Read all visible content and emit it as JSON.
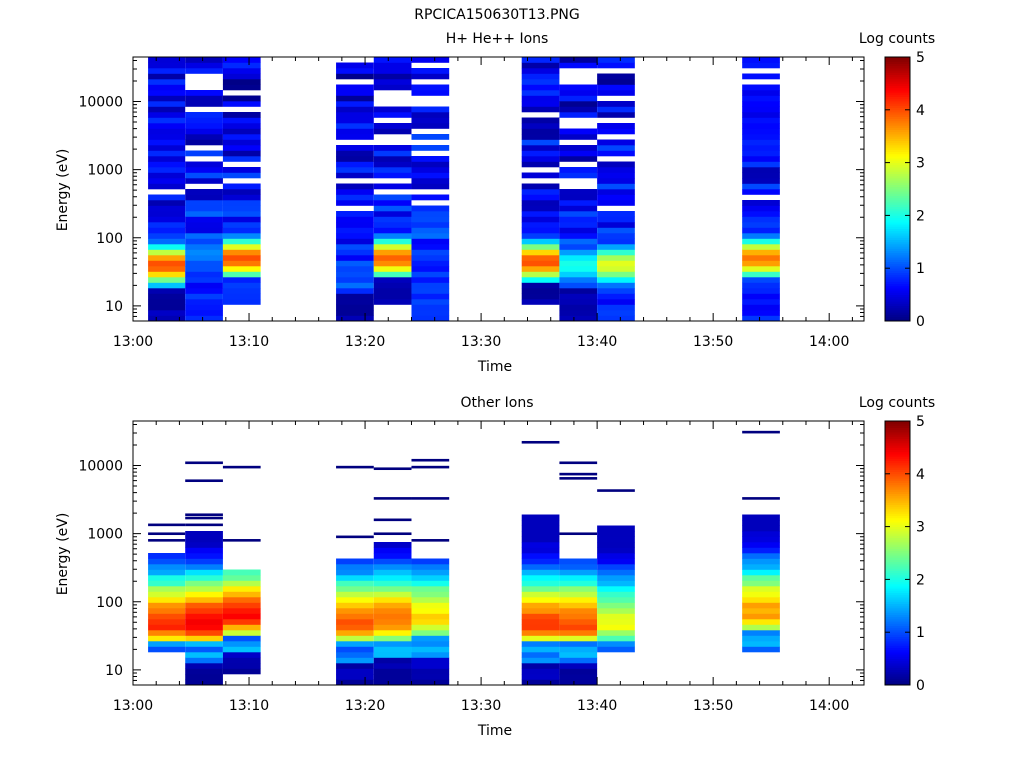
{
  "figure_title": "RPCICA150630T13.PNG",
  "colors": {
    "colormap": [
      "#00007f",
      "#0000ff",
      "#007fff",
      "#00ffff",
      "#7fff7f",
      "#ffff00",
      "#ff7f00",
      "#ff0000",
      "#7f0000"
    ]
  },
  "chart_data": [
    {
      "type": "heatmap",
      "title": "H+ He++ Ions",
      "xlabel": "Time",
      "ylabel": "Energy (eV)",
      "xticks": [
        "13:00",
        "13:10",
        "13:20",
        "13:30",
        "13:40",
        "13:50",
        "14:00"
      ],
      "xlim": [
        "13:00",
        "14:03"
      ],
      "yscale": "log",
      "ylim": [
        6,
        45000
      ],
      "yticks": [
        "10",
        "100",
        "1000",
        "10000"
      ],
      "colorbar": {
        "label": "Log counts",
        "range": [
          0,
          5
        ],
        "ticks": [
          "0",
          "1",
          "2",
          "3",
          "4",
          "5"
        ]
      },
      "time_bins": [
        {
          "start": "13:01:18",
          "end": "13:04:30",
          "emax": 40000,
          "emin": 6,
          "peak_energy": 40,
          "peak_log_counts": 4.0,
          "lowE_fill": "dark"
        },
        {
          "start": "13:04:30",
          "end": "13:07:45",
          "emax": 45000,
          "emin": 6,
          "peak_energy": 60,
          "peak_log_counts": 1.3,
          "lowE_fill": "blue"
        },
        {
          "start": "13:07:45",
          "end": "13:11:00",
          "emax": 45000,
          "emin": 10,
          "peak_energy": 50,
          "peak_log_counts": 4.0,
          "lowE_fill": "blue"
        },
        {
          "start": "13:17:30",
          "end": "13:20:45",
          "emax": 45000,
          "emin": 6,
          "peak_energy": 30,
          "peak_log_counts": 1.0,
          "lowE_fill": "dark"
        },
        {
          "start": "13:20:45",
          "end": "13:24:00",
          "emax": 45000,
          "emin": 10,
          "peak_energy": 50,
          "peak_log_counts": 3.9,
          "lowE_fill": "dark"
        },
        {
          "start": "13:24:00",
          "end": "13:27:15",
          "emax": 45000,
          "emin": 6,
          "peak_energy": 200,
          "peak_log_counts": 1.0,
          "lowE_fill": "blue"
        },
        {
          "start": "13:33:30",
          "end": "13:36:45",
          "emax": 40000,
          "emin": 10,
          "peak_energy": 45,
          "peak_log_counts": 4.0,
          "lowE_fill": "dark"
        },
        {
          "start": "13:36:45",
          "end": "13:40:00",
          "emax": 45000,
          "emin": 6,
          "peak_energy": 40,
          "peak_log_counts": 2.0,
          "lowE_fill": "dark"
        },
        {
          "start": "13:40:00",
          "end": "13:43:15",
          "emax": 45000,
          "emin": 6,
          "peak_energy": 40,
          "peak_log_counts": 3.0,
          "lowE_fill": "blue"
        },
        {
          "start": "13:52:30",
          "end": "13:55:45",
          "emax": 45000,
          "emin": 6,
          "peak_energy": 50,
          "peak_log_counts": 3.8,
          "lowE_fill": "blue"
        }
      ]
    },
    {
      "type": "heatmap",
      "title": "Other Ions",
      "xlabel": "Time",
      "ylabel": "Energy (eV)",
      "xticks": [
        "13:00",
        "13:10",
        "13:20",
        "13:30",
        "13:40",
        "13:50",
        "14:00"
      ],
      "xlim": [
        "13:00",
        "14:03"
      ],
      "yscale": "log",
      "ylim": [
        6,
        45000
      ],
      "yticks": [
        "10",
        "100",
        "1000",
        "10000"
      ],
      "colorbar": {
        "label": "Log counts",
        "range": [
          0,
          5
        ],
        "ticks": [
          "0",
          "1",
          "2",
          "3",
          "4",
          "5"
        ]
      },
      "time_bins": [
        {
          "start": "13:01:18",
          "end": "13:04:30",
          "emin": 20,
          "bulk_top": 550,
          "peak_energy": 45,
          "peak_log_counts": 4.2,
          "lines": [
            1350,
            1000,
            800
          ]
        },
        {
          "start": "13:04:30",
          "end": "13:07:45",
          "emin": 6,
          "bulk_top": 1000,
          "peak_energy": 45,
          "peak_log_counts": 4.5,
          "lines": [
            11000,
            6000,
            1900,
            1700,
            1350
          ]
        },
        {
          "start": "13:07:45",
          "end": "13:11:00",
          "emin": 9,
          "bulk_top": 320,
          "peak_energy": 60,
          "peak_log_counts": 4.3,
          "lines": [
            9500,
            800
          ]
        },
        {
          "start": "13:17:30",
          "end": "13:20:45",
          "emin": 6,
          "bulk_top": 430,
          "peak_energy": 45,
          "peak_log_counts": 3.9,
          "lines": [
            9500,
            900
          ]
        },
        {
          "start": "13:20:45",
          "end": "13:24:00",
          "emin": 6,
          "bulk_top": 700,
          "peak_energy": 50,
          "peak_log_counts": 3.8,
          "lines": [
            9000,
            3300,
            1600,
            1000
          ]
        },
        {
          "start": "13:24:00",
          "end": "13:27:15",
          "emin": 6,
          "bulk_top": 430,
          "peak_energy": 55,
          "peak_log_counts": 3.3,
          "lines": [
            12000,
            9500,
            3300,
            800
          ]
        },
        {
          "start": "13:33:30",
          "end": "13:36:45",
          "emin": 6,
          "bulk_top": 2000,
          "peak_energy": 45,
          "peak_log_counts": 4.0,
          "lines": [
            22000
          ]
        },
        {
          "start": "13:36:45",
          "end": "13:40:00",
          "emin": 6,
          "bulk_top": 420,
          "peak_energy": 45,
          "peak_log_counts": 4.0,
          "lines": [
            11000,
            7500,
            6500,
            1000
          ]
        },
        {
          "start": "13:40:00",
          "end": "13:43:15",
          "emin": 20,
          "bulk_top": 1250,
          "peak_energy": 45,
          "peak_log_counts": 3.0,
          "lines": [
            4300
          ]
        },
        {
          "start": "13:52:30",
          "end": "13:55:45",
          "emin": 20,
          "bulk_top": 1800,
          "peak_energy": 65,
          "peak_log_counts": 3.6,
          "lines": [
            31000,
            3300
          ]
        }
      ]
    }
  ]
}
